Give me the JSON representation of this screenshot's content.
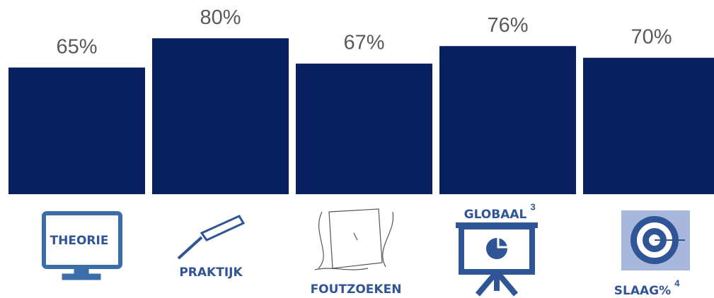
{
  "chart_data": {
    "type": "bar",
    "categories": [
      "THEORIE",
      "PRAKTIJK",
      "FOUTZOEKEN",
      "GLOBAAL",
      "SLAAG%"
    ],
    "category_notes": [
      null,
      null,
      null,
      "3",
      "4"
    ],
    "values": [
      65,
      80,
      67,
      76,
      70
    ],
    "value_labels": [
      "65%",
      "80%",
      "67%",
      "76%",
      "70%"
    ],
    "color": "#08205f"
  }
}
